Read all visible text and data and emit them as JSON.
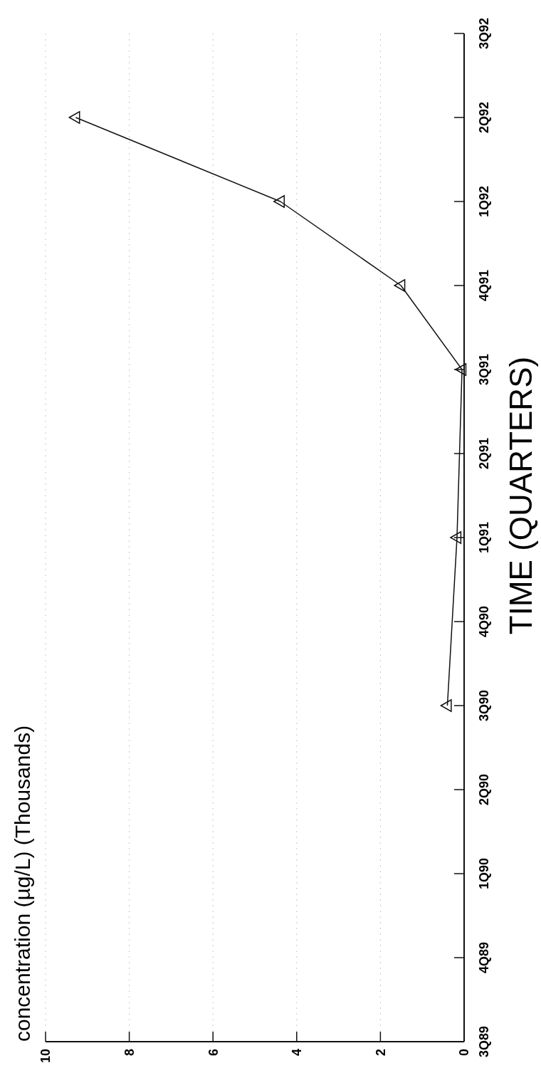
{
  "chart_data": {
    "type": "line",
    "orientation": "horizontal",
    "title": "concentration (µg/L) (Thousands)",
    "ylabel": "TIME (QUARTERS)",
    "categories": [
      "3Q92",
      "2Q92",
      "1Q92",
      "4Q91",
      "3Q91",
      "2Q91",
      "1Q91",
      "4Q90",
      "3Q90",
      "2Q90",
      "1Q90",
      "4Q89",
      "3Q89"
    ],
    "series": [
      {
        "color": "#111111",
        "values": [
          null,
          9.28,
          4.39,
          1.51,
          0.05,
          null,
          0.17,
          null,
          0.4,
          null,
          null,
          null,
          null
        ]
      }
    ],
    "xlim": [
      10,
      0
    ],
    "xticks": [
      10,
      8,
      6,
      4,
      2,
      0
    ],
    "grid": "x",
    "marker": "triangle",
    "line_style": "solid"
  }
}
